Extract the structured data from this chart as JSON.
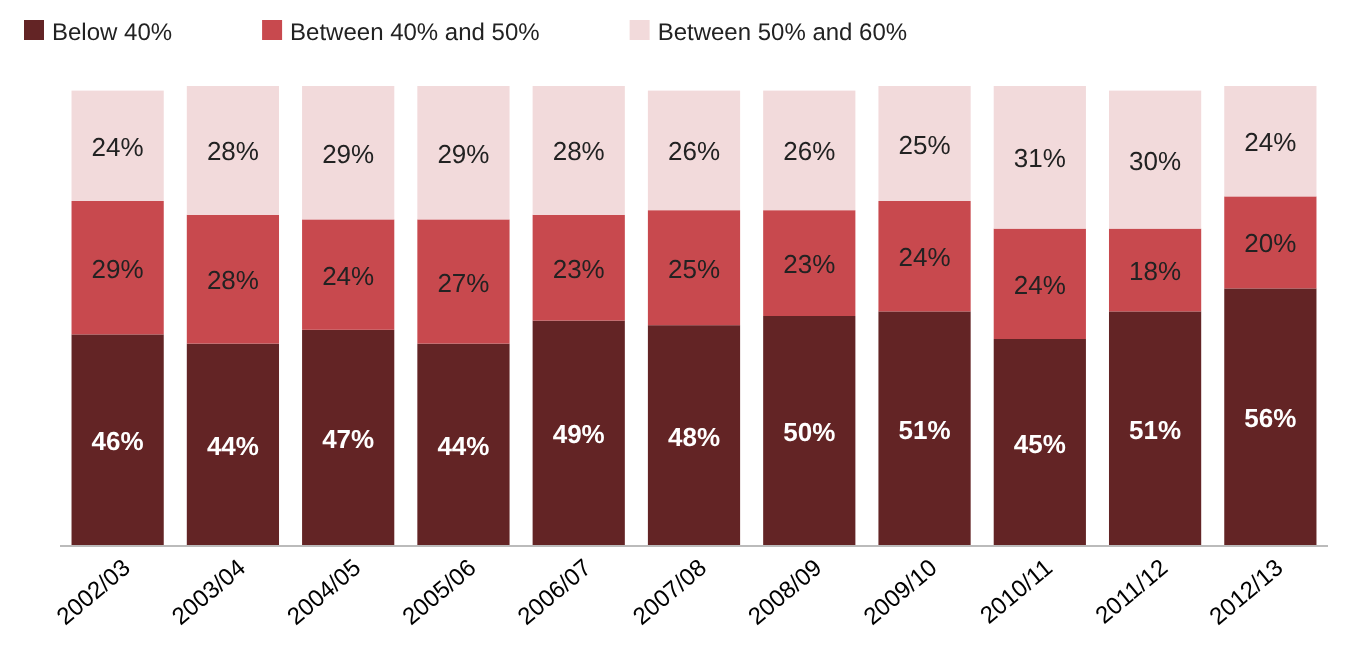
{
  "chart_data": {
    "type": "bar",
    "stacked": true,
    "legend": "top left",
    "categories": [
      "2002/03",
      "2003/04",
      "2004/05",
      "2005/06",
      "2006/07",
      "2007/08",
      "2008/09",
      "2009/10",
      "2010/11",
      "2011/12",
      "2012/13"
    ],
    "series": [
      {
        "name": "Below 40%",
        "color": "#632425",
        "values": [
          46,
          44,
          47,
          44,
          49,
          48,
          50,
          51,
          45,
          51,
          56
        ],
        "value_labels": [
          "46%",
          "44%",
          "47%",
          "44%",
          "49%",
          "48%",
          "50%",
          "51%",
          "45%",
          "51%",
          "56%"
        ]
      },
      {
        "name": "Between 40% and 50%",
        "color": "#c8494e",
        "values": [
          29,
          28,
          24,
          27,
          23,
          25,
          23,
          24,
          24,
          18,
          20
        ],
        "value_labels": [
          "29%",
          "28%",
          "24%",
          "27%",
          "23%",
          "25%",
          "23%",
          "24%",
          "24%",
          "18%",
          "20%"
        ]
      },
      {
        "name": "Between 50% and 60%",
        "color": "#f2dadb",
        "values": [
          24,
          28,
          29,
          29,
          28,
          26,
          26,
          25,
          31,
          30,
          24
        ],
        "value_labels": [
          "24%",
          "28%",
          "29%",
          "29%",
          "28%",
          "26%",
          "26%",
          "25%",
          "31%",
          "30%",
          "24%"
        ]
      }
    ]
  }
}
